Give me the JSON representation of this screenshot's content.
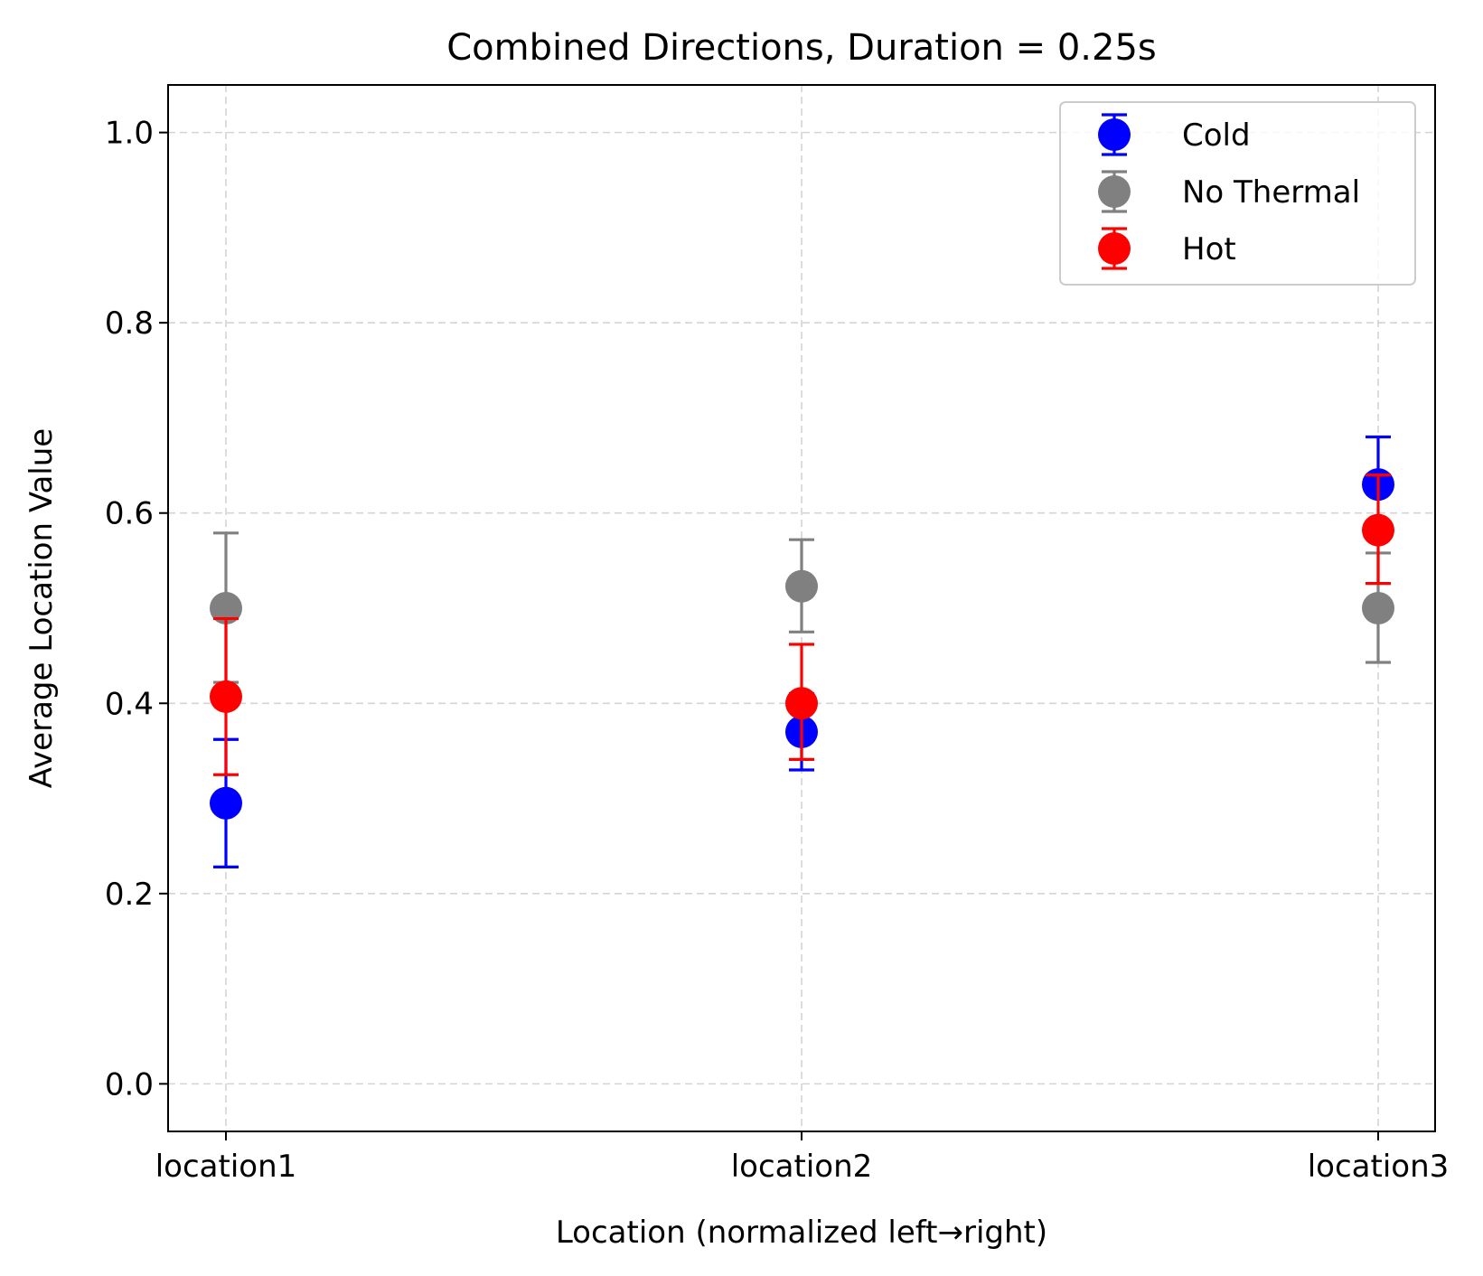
{
  "chart_data": {
    "type": "scatter",
    "title": "Combined Directions, Duration = 0.25s",
    "xlabel": "Location (normalized left→right)",
    "ylabel": "Average Location Value",
    "categories": [
      "location1",
      "location2",
      "location3"
    ],
    "ylim": [
      -0.05,
      1.05
    ],
    "yticks": [
      "0.0",
      "0.2",
      "0.4",
      "0.6",
      "0.8",
      "1.0"
    ],
    "grid": true,
    "legend_position": "top-right",
    "series": [
      {
        "name": "Cold",
        "color": "#0000ff",
        "values": [
          0.295,
          0.37,
          0.63
        ],
        "err_low": [
          0.228,
          0.33,
          0.63
        ],
        "err_high": [
          0.362,
          0.41,
          0.68
        ]
      },
      {
        "name": "No Thermal",
        "color": "#808080",
        "values": [
          0.5,
          0.523,
          0.5
        ],
        "err_low": [
          0.422,
          0.475,
          0.443
        ],
        "err_high": [
          0.579,
          0.572,
          0.558
        ]
      },
      {
        "name": "Hot",
        "color": "#ff0000",
        "values": [
          0.407,
          0.4,
          0.582
        ],
        "err_low": [
          0.325,
          0.341,
          0.526
        ],
        "err_high": [
          0.489,
          0.462,
          0.64
        ]
      }
    ]
  }
}
